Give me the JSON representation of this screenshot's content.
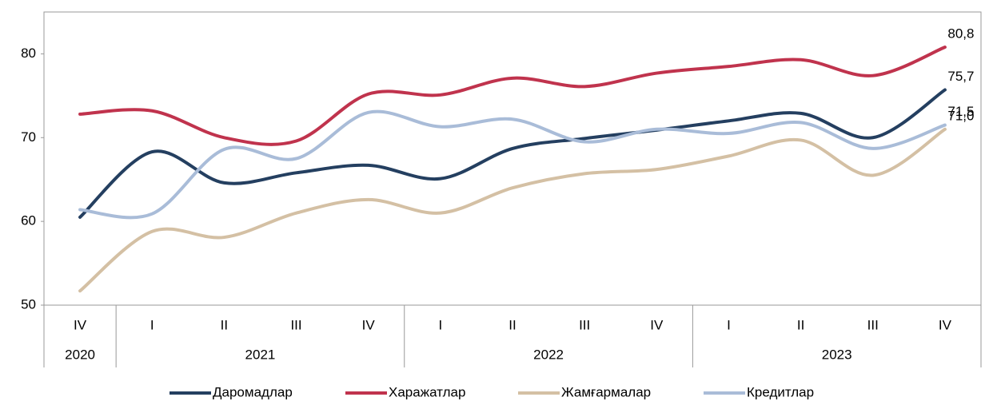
{
  "chart_data": {
    "type": "line",
    "categories": [
      "IV",
      "I",
      "II",
      "III",
      "IV",
      "I",
      "II",
      "III",
      "IV",
      "I",
      "II",
      "III",
      "IV"
    ],
    "category_groups": [
      {
        "label": "2020",
        "span": 1
      },
      {
        "label": "2021",
        "span": 4
      },
      {
        "label": "2022",
        "span": 4
      },
      {
        "label": "2023",
        "span": 4
      }
    ],
    "series": [
      {
        "name": "Даромадлар",
        "color": "#243f60",
        "values": [
          60.5,
          68.3,
          64.6,
          65.8,
          66.7,
          65.1,
          68.7,
          69.9,
          70.9,
          72.0,
          72.9,
          70.0,
          75.7
        ],
        "value_labels": [
          null,
          null,
          null,
          null,
          null,
          null,
          null,
          null,
          null,
          null,
          null,
          null,
          "75,7"
        ]
      },
      {
        "name": "Харажатлар",
        "color": "#c0334d",
        "values": [
          72.8,
          73.2,
          70.0,
          69.6,
          75.2,
          75.1,
          77.1,
          76.1,
          77.7,
          78.5,
          79.3,
          77.4,
          80.8
        ],
        "value_labels": [
          null,
          null,
          null,
          null,
          null,
          null,
          null,
          null,
          null,
          null,
          null,
          null,
          "80,8"
        ]
      },
      {
        "name": "Жамғармалар",
        "color": "#d4c0a4",
        "values": [
          51.7,
          58.8,
          58.1,
          61.0,
          62.6,
          61.0,
          64.0,
          65.7,
          66.2,
          67.8,
          69.7,
          65.5,
          71.0
        ],
        "value_labels": [
          null,
          null,
          null,
          null,
          null,
          null,
          null,
          null,
          null,
          null,
          null,
          null,
          "71,0"
        ]
      },
      {
        "name": "Кредитлар",
        "color": "#a9bcd8",
        "values": [
          61.4,
          60.9,
          68.6,
          67.5,
          73.0,
          71.3,
          72.2,
          69.5,
          71.0,
          70.5,
          71.8,
          68.7,
          71.5
        ],
        "value_labels": [
          null,
          null,
          null,
          null,
          null,
          null,
          null,
          null,
          null,
          null,
          null,
          null,
          "71,5"
        ]
      }
    ],
    "ylim": [
      50,
      85
    ],
    "yticks": [
      50,
      60,
      70,
      80
    ],
    "grid": false,
    "legend": "bottom"
  }
}
